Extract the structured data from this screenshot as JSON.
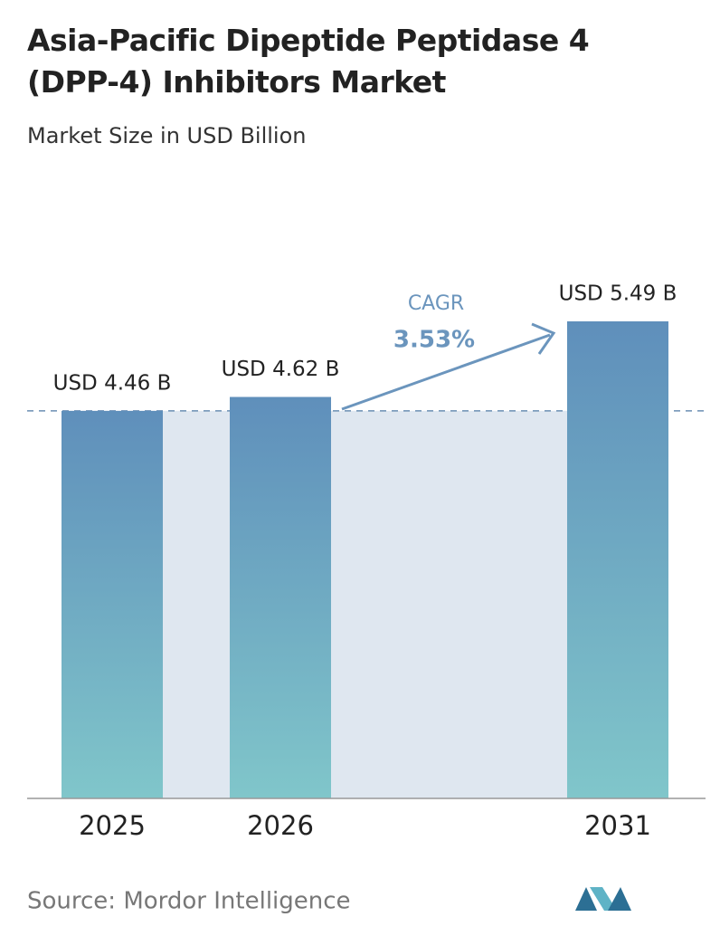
{
  "chart_data": {
    "type": "bar",
    "title": "Asia-Pacific Dipeptide Peptidase 4 (DPP-4) Inhibitors Market",
    "subtitle": "Market Size in USD Billion",
    "categories": [
      "2025",
      "2026",
      "2031"
    ],
    "values": [
      4.46,
      4.62,
      5.49
    ],
    "value_labels": [
      "USD 4.46 B",
      "USD 4.62 B",
      "USD 5.49 B"
    ],
    "annotations": [
      "CAGR",
      "3.53%"
    ],
    "source": "Source: Mordor Intelligence"
  }
}
